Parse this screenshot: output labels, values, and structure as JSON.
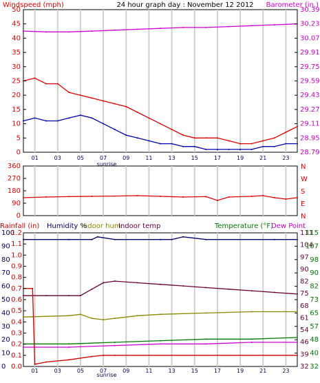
{
  "chart_data": [
    {
      "type": "line",
      "title": "24 hour graph day : November 12 2012",
      "left_axis_label": "Windspeed (mph)",
      "right_axis_label": "Barometer (in.)",
      "x_ticks": [
        "01",
        "03",
        "05",
        "07",
        "09",
        "11",
        "13",
        "15",
        "17",
        "19",
        "21",
        "23"
      ],
      "x_annotation": "sunrise",
      "left_ticks": [
        "0",
        "2.5",
        "5",
        "7.5",
        "10",
        "12.5",
        "15",
        "17.5",
        "20",
        "22.5",
        "25",
        "27.5",
        "30",
        "32.5",
        "35",
        "37.5",
        "40",
        "42.5",
        "45",
        "47.5",
        "50"
      ],
      "left_tick_labels": [
        "0",
        "5",
        "10",
        "15",
        "20",
        "25",
        "30",
        "35",
        "40",
        "45",
        "50"
      ],
      "right_tick_labels": [
        "28.79",
        "28.95",
        "29.11",
        "29.27",
        "29.43",
        "29.59",
        "29.75",
        "29.91",
        "30.07",
        "30.23",
        "30.39"
      ],
      "ylim_left": [
        0,
        50
      ],
      "ylim_right": [
        28.79,
        30.39
      ],
      "colors": {
        "gust": "#dd0000",
        "wind": "#0000aa",
        "barometer": "#cc00cc"
      },
      "series": [
        {
          "key": "gust",
          "hours": [
            0,
            1,
            2,
            3,
            4,
            5,
            6,
            7,
            8,
            9,
            10,
            11,
            12,
            13,
            14,
            15,
            16,
            17,
            18,
            19,
            20,
            21,
            22,
            23,
            24
          ],
          "values": [
            25,
            26,
            24,
            24,
            21,
            20,
            19,
            18,
            17,
            16,
            14,
            12,
            10,
            8,
            6,
            5,
            5,
            5,
            4,
            3,
            3,
            4,
            5,
            7,
            9
          ]
        },
        {
          "key": "wind",
          "hours": [
            0,
            1,
            2,
            3,
            4,
            5,
            6,
            7,
            8,
            9,
            10,
            11,
            12,
            13,
            14,
            15,
            16,
            17,
            18,
            19,
            20,
            21,
            22,
            23,
            24
          ],
          "values": [
            11,
            12,
            11,
            11,
            12,
            13,
            12,
            10,
            8,
            6,
            5,
            4,
            3,
            3,
            2,
            2,
            1,
            1,
            1,
            1,
            1,
            2,
            2,
            3,
            3
          ]
        },
        {
          "key": "barometer",
          "hours": [
            0,
            2,
            4,
            6,
            8,
            10,
            12,
            14,
            16,
            18,
            20,
            22,
            24
          ],
          "values": [
            30.15,
            30.14,
            30.14,
            30.15,
            30.16,
            30.17,
            30.18,
            30.19,
            30.19,
            30.2,
            30.21,
            30.22,
            30.23
          ]
        }
      ]
    },
    {
      "type": "scatter",
      "left_tick_labels": [
        "0",
        "90",
        "180",
        "270",
        "360"
      ],
      "ylim": [
        0,
        360
      ],
      "compass_labels": [
        "N",
        "W",
        "S",
        "E",
        "N"
      ],
      "colors": {
        "direction": "#dd0000"
      },
      "series": [
        {
          "key": "direction",
          "hours": [
            0,
            2,
            4,
            6,
            8,
            10,
            12,
            14,
            16,
            17,
            18,
            20,
            21,
            22,
            23,
            24
          ],
          "values": [
            130,
            135,
            138,
            140,
            142,
            145,
            140,
            135,
            138,
            110,
            135,
            140,
            145,
            130,
            120,
            130
          ]
        }
      ]
    },
    {
      "type": "line",
      "legend": [
        {
          "label": "Rainfall (in)",
          "color": "#cc0000"
        },
        {
          "label": "Humidity %",
          "color": "#000066"
        },
        {
          "label": "Indoor hum",
          "color": "#888800"
        },
        {
          "label": "Indoor temp",
          "color": "#660033"
        },
        {
          "label": "Temperature (°F)",
          "color": "#007700"
        },
        {
          "label": "Dew Point",
          "color": "#cc00cc"
        }
      ],
      "x_ticks": [
        "01",
        "03",
        "05",
        "07",
        "09",
        "11",
        "13",
        "15",
        "17",
        "19",
        "21",
        "23"
      ],
      "x_annotation": "sunrise",
      "rain_tick_labels": [
        "0.0",
        "0.1",
        "0.2",
        "0.3",
        "0.4",
        "0.5",
        "0.6",
        "0.7",
        "0.8",
        "0.9",
        "1.0",
        "1.1",
        "1.2"
      ],
      "humidity_tick_labels": [
        "0",
        "10",
        "20",
        "30",
        "40",
        "50",
        "60",
        "70",
        "80",
        "90",
        "100"
      ],
      "temp_left_tick_labels": [
        "32",
        "39",
        "46",
        "54",
        "61",
        "68",
        "75",
        "82",
        "90",
        "97",
        "104",
        "111"
      ],
      "temp_right_tick_labels": [
        "32",
        "40",
        "48",
        "57",
        "65",
        "73",
        "82",
        "90",
        "98",
        "107",
        "115"
      ],
      "ylim_humidity": [
        0,
        100
      ],
      "ylim_temp": [
        32,
        115
      ],
      "series": [
        {
          "key": "humidity",
          "color": "#000066",
          "hours": [
            0,
            4,
            6,
            6.5,
            8,
            12,
            13,
            14,
            16,
            22,
            24
          ],
          "values": [
            95,
            95,
            95,
            97,
            95,
            95,
            95,
            97,
            95,
            95,
            95
          ]
        },
        {
          "key": "indoor_temp",
          "color": "#660033",
          "hours": [
            0,
            2,
            4,
            5,
            6,
            7,
            8,
            10,
            12,
            14,
            16,
            18,
            20,
            22,
            24
          ],
          "values": [
            76,
            76,
            76,
            76,
            80,
            84,
            85,
            84,
            83,
            82,
            81,
            80,
            79,
            78,
            77
          ]
        },
        {
          "key": "indoor_hum",
          "color": "#888800",
          "hours": [
            0,
            4,
            5,
            6,
            7,
            8,
            10,
            12,
            16,
            20,
            24
          ],
          "values": [
            37,
            38,
            39,
            36,
            35,
            36,
            38,
            39,
            40,
            41,
            41
          ]
        },
        {
          "key": "temperature",
          "color": "#007700",
          "hours": [
            0,
            4,
            8,
            12,
            16,
            20,
            24
          ],
          "values": [
            46,
            46,
            47,
            48,
            49,
            49,
            50
          ]
        },
        {
          "key": "dew_point",
          "color": "#cc00cc",
          "hours": [
            0,
            4,
            8,
            12,
            16,
            20,
            24
          ],
          "values": [
            44,
            44,
            45,
            46,
            46,
            47,
            47
          ]
        },
        {
          "key": "rainfall",
          "color": "#cc0000",
          "hours": [
            0,
            0.8,
            1,
            2,
            4,
            6,
            7,
            8,
            24
          ],
          "values": [
            0.7,
            0.7,
            0.02,
            0.04,
            0.06,
            0.09,
            0.1,
            0.1,
            0.1
          ]
        }
      ]
    }
  ]
}
